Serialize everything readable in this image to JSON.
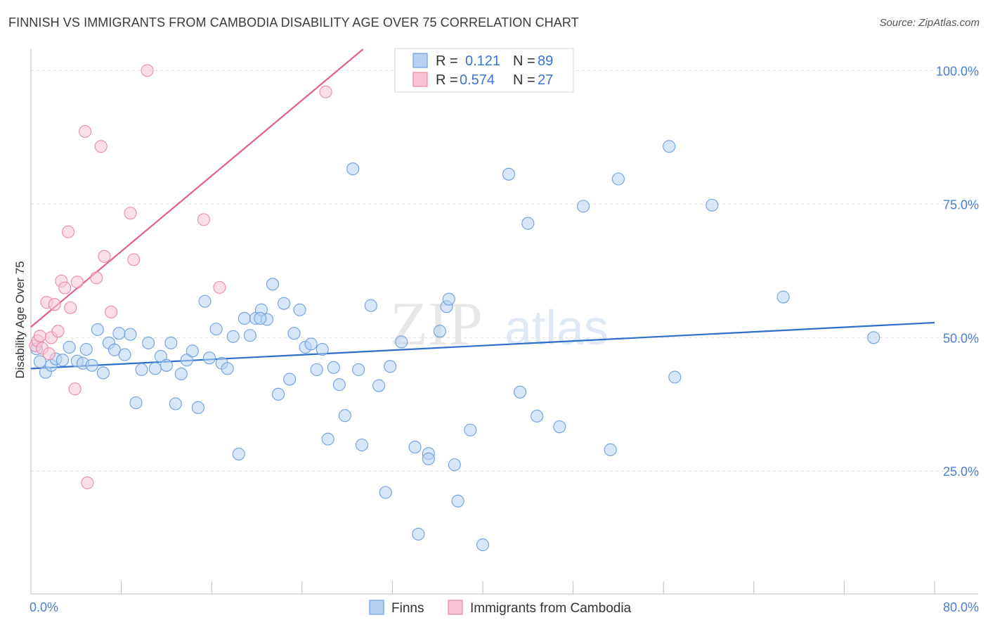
{
  "title": "FINNISH VS IMMIGRANTS FROM CAMBODIA DISABILITY AGE OVER 75 CORRELATION CHART",
  "source": "Source: ZipAtlas.com",
  "watermark": {
    "zip": "ZIP",
    "atlas": "atlas"
  },
  "colors": {
    "finns_fill": "#b8d1f2",
    "finns_stroke": "#6f9fe0",
    "finns_line": "#2f6fcc",
    "cambodia_fill": "#f8c4d3",
    "cambodia_stroke": "#e98aa8",
    "cambodia_line": "#e0608a",
    "grid": "#dcdcdc",
    "tick_text": "#4a7fd0"
  },
  "chart_data": {
    "type": "scatter",
    "ylabel": "Disability Age Over 75",
    "xlim": [
      0,
      80
    ],
    "ylim": [
      2,
      104
    ],
    "x_tick_labels": [
      {
        "value": 0,
        "label": "0.0%"
      },
      {
        "value": 80,
        "label": "80.0%"
      }
    ],
    "y_tick_labels": [
      {
        "value": 25,
        "label": "25.0%"
      },
      {
        "value": 50,
        "label": "50.0%"
      },
      {
        "value": 75,
        "label": "75.0%"
      },
      {
        "value": 100,
        "label": "100.0%"
      }
    ],
    "grid": true,
    "legend_position": "top-center",
    "legend": [
      {
        "r_label": "R =",
        "r_value": "0.121",
        "n_label": "N =",
        "n_value": "89"
      },
      {
        "r_label": "R =",
        "r_value": "0.574",
        "n_label": "N =",
        "n_value": "27"
      }
    ],
    "series": [
      {
        "name": "Finns",
        "trend": {
          "x": [
            0,
            80
          ],
          "y": [
            44.2,
            52.8
          ]
        },
        "points": [
          [
            0.8,
            45.5
          ],
          [
            1.3,
            43.5
          ],
          [
            1.8,
            44.8
          ],
          [
            2.2,
            46.0
          ],
          [
            2.8,
            45.8
          ],
          [
            3.4,
            48.2
          ],
          [
            4.1,
            45.6
          ],
          [
            4.6,
            45.2
          ],
          [
            4.9,
            47.8
          ],
          [
            5.4,
            44.8
          ],
          [
            5.9,
            51.5
          ],
          [
            6.4,
            43.4
          ],
          [
            6.9,
            49.0
          ],
          [
            7.4,
            47.7
          ],
          [
            7.8,
            50.8
          ],
          [
            8.3,
            46.8
          ],
          [
            8.8,
            50.6
          ],
          [
            9.3,
            37.8
          ],
          [
            9.8,
            44.0
          ],
          [
            10.4,
            49.0
          ],
          [
            11.0,
            44.2
          ],
          [
            11.5,
            46.5
          ],
          [
            12.0,
            44.8
          ],
          [
            12.4,
            49.0
          ],
          [
            12.8,
            37.6
          ],
          [
            13.3,
            43.2
          ],
          [
            13.8,
            45.8
          ],
          [
            14.3,
            47.5
          ],
          [
            14.8,
            36.9
          ],
          [
            15.4,
            56.8
          ],
          [
            15.8,
            46.2
          ],
          [
            16.4,
            51.6
          ],
          [
            16.9,
            45.2
          ],
          [
            17.4,
            44.2
          ],
          [
            17.9,
            50.2
          ],
          [
            18.4,
            28.2
          ],
          [
            18.9,
            53.6
          ],
          [
            19.4,
            50.4
          ],
          [
            19.9,
            53.6
          ],
          [
            20.4,
            55.2
          ],
          [
            20.9,
            53.4
          ],
          [
            21.4,
            60.0
          ],
          [
            21.9,
            39.4
          ],
          [
            22.4,
            56.4
          ],
          [
            22.9,
            42.2
          ],
          [
            23.3,
            50.8
          ],
          [
            23.8,
            55.2
          ],
          [
            24.3,
            48.2
          ],
          [
            24.8,
            48.8
          ],
          [
            25.3,
            44.0
          ],
          [
            25.8,
            47.8
          ],
          [
            26.3,
            31.0
          ],
          [
            26.8,
            44.4
          ],
          [
            27.3,
            41.2
          ],
          [
            27.8,
            35.4
          ],
          [
            28.5,
            81.6
          ],
          [
            29.0,
            44.0
          ],
          [
            29.3,
            29.9
          ],
          [
            30.1,
            56.0
          ],
          [
            30.8,
            41.0
          ],
          [
            31.4,
            21.0
          ],
          [
            31.8,
            44.6
          ],
          [
            32.8,
            49.2
          ],
          [
            34.0,
            29.5
          ],
          [
            34.3,
            13.2
          ],
          [
            35.2,
            28.3
          ],
          [
            35.2,
            27.3
          ],
          [
            36.2,
            51.2
          ],
          [
            36.8,
            55.8
          ],
          [
            37.0,
            57.2
          ],
          [
            37.5,
            26.2
          ],
          [
            37.8,
            19.4
          ],
          [
            38.9,
            32.7
          ],
          [
            40.0,
            11.2
          ],
          [
            42.3,
            80.6
          ],
          [
            43.3,
            39.8
          ],
          [
            44.0,
            71.4
          ],
          [
            44.8,
            35.3
          ],
          [
            46.8,
            33.3
          ],
          [
            48.9,
            74.6
          ],
          [
            51.3,
            29.0
          ],
          [
            52.0,
            79.7
          ],
          [
            56.5,
            85.8
          ],
          [
            57.0,
            42.6
          ],
          [
            60.3,
            74.8
          ],
          [
            66.6,
            57.6
          ],
          [
            74.6,
            50.0
          ],
          [
            0.5,
            47.9
          ],
          [
            20.3,
            53.6
          ]
        ]
      },
      {
        "name": "Immigrants from Cambodia",
        "trend": {
          "x": [
            0,
            29.4
          ],
          "y": [
            52.0,
            104
          ]
        },
        "points": [
          [
            0.4,
            48.5
          ],
          [
            0.6,
            49.4
          ],
          [
            0.8,
            50.3
          ],
          [
            1.0,
            48.0
          ],
          [
            1.4,
            56.6
          ],
          [
            1.6,
            47.0
          ],
          [
            1.8,
            50.0
          ],
          [
            2.1,
            56.2
          ],
          [
            2.4,
            51.2
          ],
          [
            2.7,
            60.6
          ],
          [
            3.0,
            59.3
          ],
          [
            3.3,
            69.8
          ],
          [
            3.5,
            55.6
          ],
          [
            3.9,
            40.4
          ],
          [
            4.1,
            60.4
          ],
          [
            4.8,
            88.6
          ],
          [
            5.0,
            22.8
          ],
          [
            5.8,
            61.2
          ],
          [
            6.2,
            85.8
          ],
          [
            6.5,
            65.2
          ],
          [
            7.1,
            54.8
          ],
          [
            8.8,
            73.3
          ],
          [
            9.1,
            64.6
          ],
          [
            10.3,
            100.0
          ],
          [
            15.3,
            72.1
          ],
          [
            16.7,
            59.4
          ],
          [
            26.1,
            96.0
          ]
        ]
      }
    ]
  },
  "bottom_legend": [
    {
      "label": "Finns"
    },
    {
      "label": "Immigrants from Cambodia"
    }
  ]
}
